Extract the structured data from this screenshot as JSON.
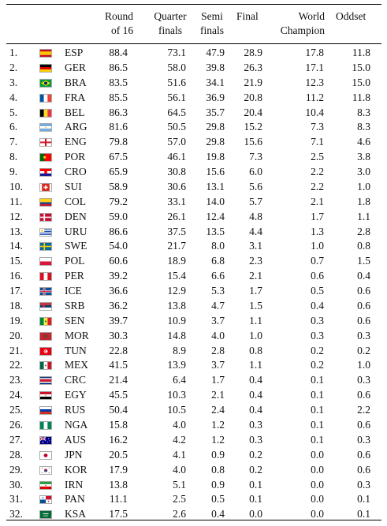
{
  "table": {
    "headers": {
      "round16": [
        "Round",
        "of 16"
      ],
      "quarter": [
        "Quarter",
        "finals"
      ],
      "semi": [
        "Semi",
        "finals"
      ],
      "final": [
        "Final"
      ],
      "champion": [
        "World",
        "Champion"
      ],
      "odds": [
        "Oddset"
      ]
    },
    "rows": [
      {
        "rank": "1.",
        "code": "ESP",
        "flag": "esp-flag",
        "r16": "88.4",
        "qf": "73.1",
        "sf": "47.9",
        "final": "28.9",
        "champ": "17.8",
        "odds": "11.8"
      },
      {
        "rank": "2.",
        "code": "GER",
        "flag": "ger-flag",
        "r16": "86.5",
        "qf": "58.0",
        "sf": "39.8",
        "final": "26.3",
        "champ": "17.1",
        "odds": "15.0"
      },
      {
        "rank": "3.",
        "code": "BRA",
        "flag": "bra-flag",
        "r16": "83.5",
        "qf": "51.6",
        "sf": "34.1",
        "final": "21.9",
        "champ": "12.3",
        "odds": "15.0"
      },
      {
        "rank": "4.",
        "code": "FRA",
        "flag": "fra-flag",
        "r16": "85.5",
        "qf": "56.1",
        "sf": "36.9",
        "final": "20.8",
        "champ": "11.2",
        "odds": "11.8"
      },
      {
        "rank": "5.",
        "code": "BEL",
        "flag": "bel-flag",
        "r16": "86.3",
        "qf": "64.5",
        "sf": "35.7",
        "final": "20.4",
        "champ": "10.4",
        "odds": "8.3"
      },
      {
        "rank": "6.",
        "code": "ARG",
        "flag": "arg-flag",
        "r16": "81.6",
        "qf": "50.5",
        "sf": "29.8",
        "final": "15.2",
        "champ": "7.3",
        "odds": "8.3"
      },
      {
        "rank": "7.",
        "code": "ENG",
        "flag": "eng-flag",
        "r16": "79.8",
        "qf": "57.0",
        "sf": "29.8",
        "final": "15.6",
        "champ": "7.1",
        "odds": "4.6"
      },
      {
        "rank": "8.",
        "code": "POR",
        "flag": "por-flag",
        "r16": "67.5",
        "qf": "46.1",
        "sf": "19.8",
        "final": "7.3",
        "champ": "2.5",
        "odds": "3.8"
      },
      {
        "rank": "9.",
        "code": "CRO",
        "flag": "cro-flag",
        "r16": "65.9",
        "qf": "30.8",
        "sf": "15.6",
        "final": "6.0",
        "champ": "2.2",
        "odds": "3.0"
      },
      {
        "rank": "10.",
        "code": "SUI",
        "flag": "sui-flag",
        "r16": "58.9",
        "qf": "30.6",
        "sf": "13.1",
        "final": "5.6",
        "champ": "2.2",
        "odds": "1.0"
      },
      {
        "rank": "11.",
        "code": "COL",
        "flag": "col-flag",
        "r16": "79.2",
        "qf": "33.1",
        "sf": "14.0",
        "final": "5.7",
        "champ": "2.1",
        "odds": "1.8"
      },
      {
        "rank": "12.",
        "code": "DEN",
        "flag": "den-flag",
        "r16": "59.0",
        "qf": "26.1",
        "sf": "12.4",
        "final": "4.8",
        "champ": "1.7",
        "odds": "1.1"
      },
      {
        "rank": "13.",
        "code": "URU",
        "flag": "uru-flag",
        "r16": "86.6",
        "qf": "37.5",
        "sf": "13.5",
        "final": "4.4",
        "champ": "1.3",
        "odds": "2.8"
      },
      {
        "rank": "14.",
        "code": "SWE",
        "flag": "swe-flag",
        "r16": "54.0",
        "qf": "21.7",
        "sf": "8.0",
        "final": "3.1",
        "champ": "1.0",
        "odds": "0.8"
      },
      {
        "rank": "15.",
        "code": "POL",
        "flag": "pol-flag",
        "r16": "60.6",
        "qf": "18.9",
        "sf": "6.8",
        "final": "2.3",
        "champ": "0.7",
        "odds": "1.5"
      },
      {
        "rank": "16.",
        "code": "PER",
        "flag": "per-flag",
        "r16": "39.2",
        "qf": "15.4",
        "sf": "6.6",
        "final": "2.1",
        "champ": "0.6",
        "odds": "0.4"
      },
      {
        "rank": "17.",
        "code": "ICE",
        "flag": "ice-flag",
        "r16": "36.6",
        "qf": "12.9",
        "sf": "5.3",
        "final": "1.7",
        "champ": "0.5",
        "odds": "0.6"
      },
      {
        "rank": "18.",
        "code": "SRB",
        "flag": "srb-flag",
        "r16": "36.2",
        "qf": "13.8",
        "sf": "4.7",
        "final": "1.5",
        "champ": "0.4",
        "odds": "0.6"
      },
      {
        "rank": "19.",
        "code": "SEN",
        "flag": "sen-flag",
        "r16": "39.7",
        "qf": "10.9",
        "sf": "3.7",
        "final": "1.1",
        "champ": "0.3",
        "odds": "0.6"
      },
      {
        "rank": "20.",
        "code": "MOR",
        "flag": "mor-flag",
        "r16": "30.3",
        "qf": "14.8",
        "sf": "4.0",
        "final": "1.0",
        "champ": "0.3",
        "odds": "0.3"
      },
      {
        "rank": "21.",
        "code": "TUN",
        "flag": "tun-flag",
        "r16": "22.8",
        "qf": "8.9",
        "sf": "2.8",
        "final": "0.8",
        "champ": "0.2",
        "odds": "0.2"
      },
      {
        "rank": "22.",
        "code": "MEX",
        "flag": "mex-flag",
        "r16": "41.5",
        "qf": "13.9",
        "sf": "3.7",
        "final": "1.1",
        "champ": "0.2",
        "odds": "1.0"
      },
      {
        "rank": "23.",
        "code": "CRC",
        "flag": "crc-flag",
        "r16": "21.4",
        "qf": "6.4",
        "sf": "1.7",
        "final": "0.4",
        "champ": "0.1",
        "odds": "0.3"
      },
      {
        "rank": "24.",
        "code": "EGY",
        "flag": "egy-flag",
        "r16": "45.5",
        "qf": "10.3",
        "sf": "2.1",
        "final": "0.4",
        "champ": "0.1",
        "odds": "0.6"
      },
      {
        "rank": "25.",
        "code": "RUS",
        "flag": "rus-flag",
        "r16": "50.4",
        "qf": "10.5",
        "sf": "2.4",
        "final": "0.4",
        "champ": "0.1",
        "odds": "2.2"
      },
      {
        "rank": "26.",
        "code": "NGA",
        "flag": "nga-flag",
        "r16": "15.8",
        "qf": "4.0",
        "sf": "1.2",
        "final": "0.3",
        "champ": "0.1",
        "odds": "0.6"
      },
      {
        "rank": "27.",
        "code": "AUS",
        "flag": "aus-flag",
        "r16": "16.2",
        "qf": "4.2",
        "sf": "1.2",
        "final": "0.3",
        "champ": "0.1",
        "odds": "0.3"
      },
      {
        "rank": "28.",
        "code": "JPN",
        "flag": "jpn-flag",
        "r16": "20.5",
        "qf": "4.1",
        "sf": "0.9",
        "final": "0.2",
        "champ": "0.0",
        "odds": "0.6"
      },
      {
        "rank": "29.",
        "code": "KOR",
        "flag": "kor-flag",
        "r16": "17.9",
        "qf": "4.0",
        "sf": "0.8",
        "final": "0.2",
        "champ": "0.0",
        "odds": "0.6"
      },
      {
        "rank": "30.",
        "code": "IRN",
        "flag": "irn-flag",
        "r16": "13.8",
        "qf": "5.1",
        "sf": "0.9",
        "final": "0.1",
        "champ": "0.0",
        "odds": "0.3"
      },
      {
        "rank": "31.",
        "code": "PAN",
        "flag": "pan-flag",
        "r16": "11.1",
        "qf": "2.5",
        "sf": "0.5",
        "final": "0.1",
        "champ": "0.0",
        "odds": "0.1"
      },
      {
        "rank": "32.",
        "code": "KSA",
        "flag": "ksa-flag",
        "r16": "17.5",
        "qf": "2.6",
        "sf": "0.4",
        "final": "0.0",
        "champ": "0.0",
        "odds": "0.1"
      }
    ]
  }
}
